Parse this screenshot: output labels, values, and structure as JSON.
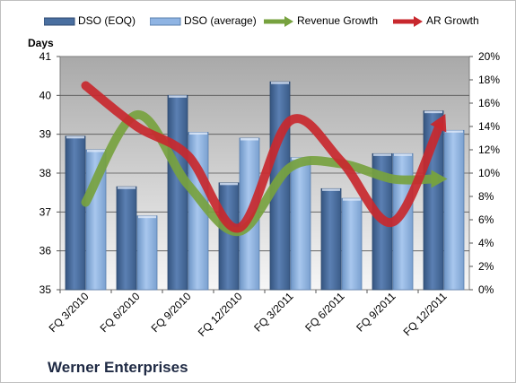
{
  "chart_data": {
    "type": "bar",
    "title": "",
    "left_axis_label": "Days",
    "left_ylim": [
      35,
      41
    ],
    "left_ticks": [
      "35",
      "36",
      "37",
      "38",
      "39",
      "40",
      "41"
    ],
    "right_ylim": [
      0,
      20
    ],
    "right_ticks": [
      "0%",
      "2%",
      "4%",
      "6%",
      "8%",
      "10%",
      "12%",
      "14%",
      "16%",
      "18%",
      "20%"
    ],
    "categories": [
      "FQ 3/2010",
      "FQ 6/2010",
      "FQ 9/2010",
      "FQ 12/2010",
      "FQ 3/2011",
      "FQ 6/2011",
      "FQ 9/2011",
      "FQ 12/2011"
    ],
    "grid": true,
    "legend_position": "top",
    "series": [
      {
        "name": "DSO (EOQ)",
        "type": "bar",
        "axis": "left",
        "color": "#4a6fa0",
        "values": [
          38.95,
          37.65,
          40.0,
          37.75,
          40.35,
          37.6,
          38.5,
          39.6
        ]
      },
      {
        "name": "DSO (average)",
        "type": "bar",
        "axis": "left",
        "color": "#8fb4e3",
        "values": [
          38.6,
          36.9,
          39.05,
          38.9,
          38.4,
          37.35,
          38.5,
          39.1
        ]
      },
      {
        "name": "Revenue Growth",
        "type": "line",
        "axis": "right",
        "color": "#77a23f",
        "values": [
          7.5,
          15.0,
          9.0,
          5.0,
          10.5,
          10.8,
          9.5,
          9.5
        ]
      },
      {
        "name": "AR Growth",
        "type": "line",
        "axis": "right",
        "color": "#c8282e",
        "values": [
          17.5,
          14.0,
          11.5,
          5.3,
          14.5,
          11.0,
          5.8,
          14.8
        ]
      }
    ]
  },
  "company": "Werner Enterprises"
}
